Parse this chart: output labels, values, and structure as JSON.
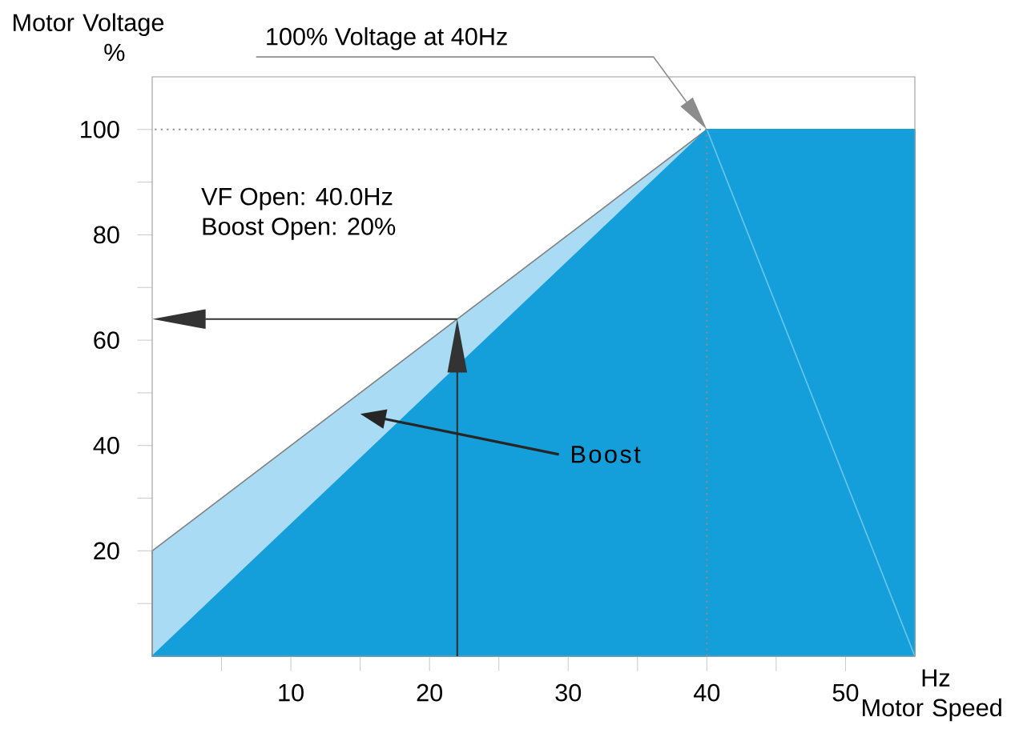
{
  "chart_data": {
    "type": "area",
    "xlabel": "Hz Motor Speed",
    "ylabel": "Motor Voltage %",
    "xlim": [
      0,
      55
    ],
    "ylim": [
      0,
      110
    ],
    "xticks": [
      {
        "value": 5,
        "label": null
      },
      10,
      {
        "value": 15,
        "label": null
      },
      20,
      {
        "value": 25,
        "label": null
      },
      30,
      {
        "value": 35,
        "label": null
      },
      40,
      {
        "value": 45,
        "label": null
      },
      50
    ],
    "yticks": [
      {
        "value": 10,
        "label": null
      },
      20,
      {
        "value": 30,
        "label": null
      },
      40,
      {
        "value": 50,
        "label": null
      },
      60,
      {
        "value": 70,
        "label": null
      },
      80,
      {
        "value": 90,
        "label": null
      },
      100
    ],
    "series": [
      {
        "type": "area",
        "color": "#a9dcf4",
        "x": [
          0,
          40
        ],
        "values": [
          20,
          100
        ]
      },
      {
        "type": "area",
        "color": "#159fda",
        "x": [
          0,
          40,
          55
        ],
        "values": [
          0,
          100,
          100
        ]
      },
      {
        "type": "line",
        "color": "#6cc6ee",
        "x": [
          40,
          55
        ],
        "values": [
          100,
          0
        ]
      }
    ],
    "ref_lines": [
      {
        "axis": "y",
        "value": 100,
        "line_style": "dotted"
      },
      {
        "axis": "x",
        "value": 40,
        "line_style": "dotted"
      },
      {
        "axis": "y",
        "value": 64,
        "line_style": "solid"
      },
      {
        "axis": "x",
        "value": 22,
        "line_style": "solid"
      }
    ],
    "annotations": [
      "100% Voltage at 40Hz",
      "VF Open: 40.0Hz",
      "Boost Open: 20%",
      "Boost"
    ],
    "grid": false
  }
}
